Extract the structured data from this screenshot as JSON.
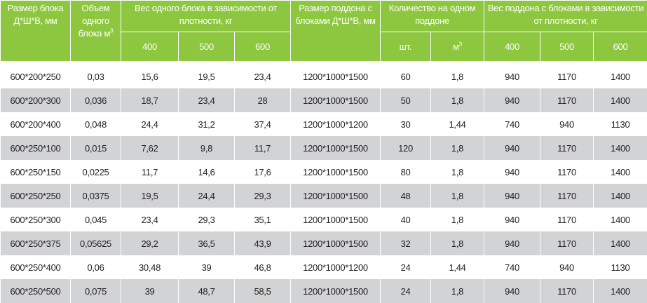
{
  "headers": {
    "size": "Размер блока Д*Ш*В, мм",
    "volume": "Объем одного блока м",
    "volume_sup": "3",
    "weight": "Вес одного блока в зависимости от плотности, кг",
    "pallet_size": "Размер поддона с блоками Д*Ш*В, мм",
    "qty": "Количество на одном поддоне",
    "pallet_weight": "Вес поддона с блоками в зависимости от плотности, кг",
    "d400": "400",
    "d500": "500",
    "d600": "600",
    "pcs": "шт.",
    "m3": "м",
    "m3_sup": "3",
    "pd400": "400",
    "pd500": "500",
    "pd600": "600"
  },
  "rows": [
    [
      "600*200*250",
      "0,03",
      "15,6",
      "19,5",
      "23,4",
      "1200*1000*1500",
      "60",
      "1,8",
      "940",
      "1170",
      "1400"
    ],
    [
      "600*200*300",
      "0,036",
      "18,7",
      "23,4",
      "28",
      "1200*1000*1500",
      "50",
      "1,8",
      "940",
      "1170",
      "1400"
    ],
    [
      "600*200*400",
      "0,048",
      "24,4",
      "31,2",
      "37,4",
      "1200*1000*1200",
      "30",
      "1,44",
      "740",
      "940",
      "1130"
    ],
    [
      "600*250*100",
      "0,015",
      "7,62",
      "9,8",
      "11,7",
      "1200*1000*1500",
      "120",
      "1,8",
      "940",
      "1170",
      "1400"
    ],
    [
      "600*250*150",
      "0,0225",
      "11,7",
      "14,6",
      "17,6",
      "1200*1000*1500",
      "80",
      "1,8",
      "940",
      "1170",
      "1400"
    ],
    [
      "600*250*250",
      "0,0375",
      "19,5",
      "24,4",
      "29,3",
      "1200*1000*1500",
      "48",
      "1,8",
      "940",
      "1170",
      "1400"
    ],
    [
      "600*250*300",
      "0,045",
      "23,4",
      "29,3",
      "35,1",
      "1200*1000*1500",
      "40",
      "1,8",
      "940",
      "1170",
      "1400"
    ],
    [
      "600*250*375",
      "0,05625",
      "29,2",
      "36,5",
      "43,9",
      "1200*1000*1500",
      "32",
      "1,8",
      "940",
      "1170",
      "1400"
    ],
    [
      "600*250*400",
      "0,06",
      "30,48",
      "39",
      "46,8",
      "1200*1000*1200",
      "24",
      "1,44",
      "740",
      "940",
      "1130"
    ],
    [
      "600*250*500",
      "0,075",
      "39",
      "48,7",
      "58,5",
      "1200*1000*1500",
      "24",
      "1,8",
      "940",
      "1170",
      "1400"
    ]
  ]
}
